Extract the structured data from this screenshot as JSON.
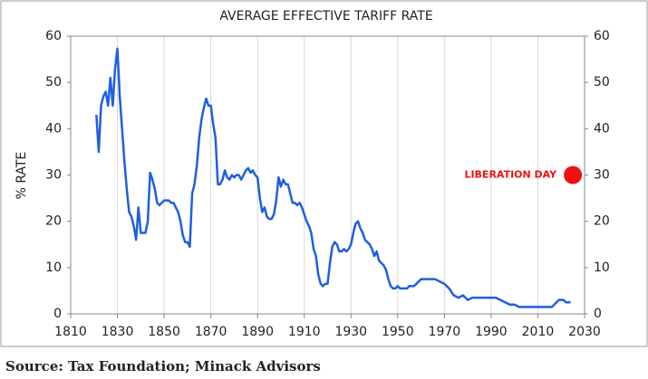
{
  "chart_data": {
    "type": "line",
    "title": "AVERAGE EFFECTIVE TARIFF RATE",
    "y_label": "% RATE",
    "source": "Source: Tax Foundation; Minack Advisors",
    "x": [
      1821,
      1822,
      1823,
      1824,
      1825,
      1826,
      1827,
      1828,
      1829,
      1830,
      1831,
      1832,
      1833,
      1834,
      1835,
      1836,
      1837,
      1838,
      1839,
      1840,
      1842,
      1843,
      1844,
      1845,
      1846,
      1847,
      1848,
      1849,
      1850,
      1852,
      1853,
      1854,
      1856,
      1857,
      1858,
      1859,
      1860,
      1861,
      1862,
      1863,
      1864,
      1865,
      1866,
      1867,
      1868,
      1869,
      1870,
      1871,
      1872,
      1873,
      1874,
      1875,
      1876,
      1877,
      1878,
      1879,
      1880,
      1881,
      1882,
      1883,
      1884,
      1885,
      1886,
      1887,
      1888,
      1889,
      1890,
      1891,
      1892,
      1893,
      1894,
      1895,
      1896,
      1897,
      1898,
      1899,
      1900,
      1901,
      1902,
      1903,
      1904,
      1905,
      1906,
      1907,
      1908,
      1909,
      1910,
      1911,
      1912,
      1913,
      1914,
      1915,
      1916,
      1917,
      1918,
      1919,
      1920,
      1921,
      1922,
      1923,
      1924,
      1925,
      1926,
      1927,
      1928,
      1929,
      1930,
      1931,
      1932,
      1933,
      1934,
      1935,
      1936,
      1937,
      1938,
      1939,
      1940,
      1941,
      1942,
      1943,
      1944,
      1945,
      1946,
      1947,
      1948,
      1949,
      1950,
      1951,
      1952,
      1953,
      1954,
      1955,
      1956,
      1957,
      1958,
      1959,
      1960,
      1962,
      1964,
      1966,
      1968,
      1970,
      1972,
      1974,
      1976,
      1978,
      1980,
      1982,
      1984,
      1986,
      1988,
      1990,
      1992,
      1994,
      1996,
      1998,
      2000,
      2002,
      2004,
      2006,
      2008,
      2010,
      2012,
      2014,
      2016,
      2018,
      2019,
      2020,
      2021,
      2022,
      2023,
      2024
    ],
    "series": [
      {
        "name": "Average effective tariff rate",
        "color": "#1f5fe0",
        "values": [
          43,
          35,
          45,
          47,
          48,
          45,
          51,
          45,
          53,
          57.3,
          47,
          40,
          33,
          27,
          22,
          21,
          19,
          16,
          23,
          17.5,
          17.5,
          20,
          30.5,
          29,
          27,
          24,
          23.5,
          24,
          24.5,
          24.5,
          24,
          24,
          22,
          20,
          17,
          15.5,
          15.5,
          14.5,
          26,
          28,
          32,
          38,
          42,
          44.5,
          46.5,
          45,
          45,
          41,
          38,
          28,
          28,
          29,
          31,
          29.5,
          29,
          30,
          29.5,
          30,
          30,
          29,
          30,
          31,
          31.5,
          30.5,
          31,
          30,
          29.5,
          25,
          22,
          23,
          21,
          20.5,
          20.5,
          21.5,
          24.5,
          29.5,
          27.5,
          29,
          28,
          28,
          26,
          24,
          24,
          23.5,
          24,
          23,
          21.5,
          20,
          19,
          17.5,
          14,
          12.5,
          8.5,
          6.5,
          6,
          6.5,
          6.5,
          11,
          14.5,
          15.5,
          15,
          13.5,
          13.5,
          14,
          13.5,
          14,
          15,
          17.5,
          19.5,
          20,
          18.5,
          17.5,
          16,
          15.5,
          15,
          14,
          12.5,
          13.5,
          11.5,
          11,
          10.5,
          9.5,
          7.5,
          6,
          5.5,
          5.5,
          6,
          5.5,
          5.5,
          5.5,
          5.5,
          6,
          6,
          6,
          6.5,
          7,
          7.5,
          7.5,
          7.5,
          7.5,
          7,
          6.5,
          5.5,
          4,
          3.5,
          4,
          3,
          3.5,
          3.5,
          3.5,
          3.5,
          3.5,
          3.5,
          3,
          2.5,
          2,
          2,
          1.5,
          1.5,
          1.5,
          1.5,
          1.5,
          1.5,
          1.5,
          1.5,
          2.5,
          3,
          3,
          3,
          2.5,
          2.5,
          2.5
        ]
      }
    ],
    "annotations": [
      {
        "text": "LIBERATION DAY",
        "x": 2025,
        "y": 30,
        "color": "#ee1111"
      }
    ],
    "xlim": [
      1810,
      2030
    ],
    "xticks": [
      1810,
      1830,
      1850,
      1870,
      1890,
      1910,
      1930,
      1950,
      1970,
      1990,
      2010,
      2030
    ],
    "ylim": [
      0,
      60
    ],
    "yticks": [
      0,
      10,
      20,
      30,
      40,
      50,
      60
    ],
    "y2lim": [
      0,
      60
    ],
    "y2ticks": [
      0,
      10,
      20,
      30,
      40,
      50,
      60
    ],
    "grid": "x"
  }
}
